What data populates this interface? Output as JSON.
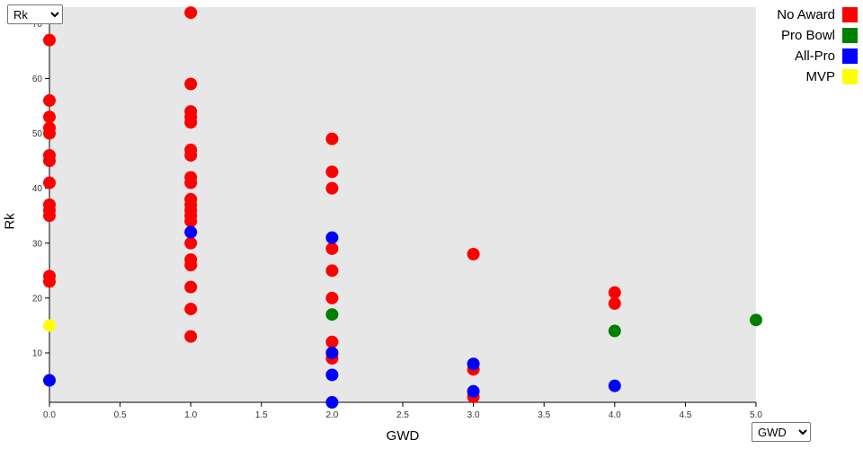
{
  "controls": {
    "y_variable": {
      "value": "Rk",
      "options": [
        "Rk"
      ]
    },
    "x_variable": {
      "value": "GWD",
      "options": [
        "GWD"
      ]
    }
  },
  "chart_data": {
    "type": "scatter",
    "title": "",
    "xlabel": "GWD",
    "ylabel": "Rk",
    "xlim": [
      0,
      5
    ],
    "ylim": [
      1,
      73
    ],
    "grid": false,
    "legend_position": "top-right-outside",
    "plot_background": "#e7e7e7",
    "axis_color": "#000000",
    "tick_label_color": "#333333",
    "x_ticks": [
      {
        "v": 0.0,
        "label": "0.0"
      },
      {
        "v": 0.5,
        "label": "0.5"
      },
      {
        "v": 1.0,
        "label": "1.0"
      },
      {
        "v": 1.5,
        "label": "1.5"
      },
      {
        "v": 2.0,
        "label": "2.0"
      },
      {
        "v": 2.5,
        "label": "2.5"
      },
      {
        "v": 3.0,
        "label": "3.0"
      },
      {
        "v": 3.5,
        "label": "3.5"
      },
      {
        "v": 4.0,
        "label": "4.0"
      },
      {
        "v": 4.5,
        "label": "4.5"
      },
      {
        "v": 5.0,
        "label": "5.0"
      }
    ],
    "y_ticks": [
      {
        "v": 10,
        "label": "10"
      },
      {
        "v": 20,
        "label": "20"
      },
      {
        "v": 30,
        "label": "30"
      },
      {
        "v": 40,
        "label": "40"
      },
      {
        "v": 50,
        "label": "50"
      },
      {
        "v": 60,
        "label": "60"
      },
      {
        "v": 70,
        "label": "70"
      }
    ],
    "series": [
      {
        "name": "No Award",
        "color": "#ff0000",
        "points": [
          [
            0,
            67
          ],
          [
            0,
            56
          ],
          [
            0,
            53
          ],
          [
            0,
            51
          ],
          [
            0,
            50
          ],
          [
            0,
            46
          ],
          [
            0,
            45
          ],
          [
            0,
            41
          ],
          [
            0,
            37
          ],
          [
            0,
            36
          ],
          [
            0,
            35
          ],
          [
            0,
            24
          ],
          [
            0,
            23
          ],
          [
            1,
            72
          ],
          [
            1,
            59
          ],
          [
            1,
            54
          ],
          [
            1,
            53
          ],
          [
            1,
            52
          ],
          [
            1,
            47
          ],
          [
            1,
            46
          ],
          [
            1,
            42
          ],
          [
            1,
            41
          ],
          [
            1,
            38
          ],
          [
            1,
            37
          ],
          [
            1,
            36
          ],
          [
            1,
            35
          ],
          [
            1,
            34
          ],
          [
            1,
            30
          ],
          [
            1,
            27
          ],
          [
            1,
            26
          ],
          [
            1,
            22
          ],
          [
            1,
            18
          ],
          [
            1,
            13
          ],
          [
            2,
            49
          ],
          [
            2,
            43
          ],
          [
            2,
            40
          ],
          [
            2,
            29
          ],
          [
            2,
            25
          ],
          [
            2,
            20
          ],
          [
            2,
            12
          ],
          [
            2,
            9
          ],
          [
            3,
            28
          ],
          [
            3,
            7
          ],
          [
            3,
            2
          ],
          [
            4,
            21
          ],
          [
            4,
            19
          ]
        ]
      },
      {
        "name": "Pro Bowl",
        "color": "#008000",
        "points": [
          [
            2,
            17
          ],
          [
            4,
            14
          ],
          [
            5,
            16
          ]
        ]
      },
      {
        "name": "All-Pro",
        "color": "#0000ff",
        "points": [
          [
            0,
            5
          ],
          [
            1,
            32
          ],
          [
            2,
            31
          ],
          [
            2,
            10
          ],
          [
            2,
            6
          ],
          [
            2,
            1
          ],
          [
            3,
            8
          ],
          [
            3,
            3
          ],
          [
            4,
            4
          ]
        ]
      },
      {
        "name": "MVP",
        "color": "#ffff00",
        "points": [
          [
            0,
            15
          ]
        ]
      }
    ]
  }
}
